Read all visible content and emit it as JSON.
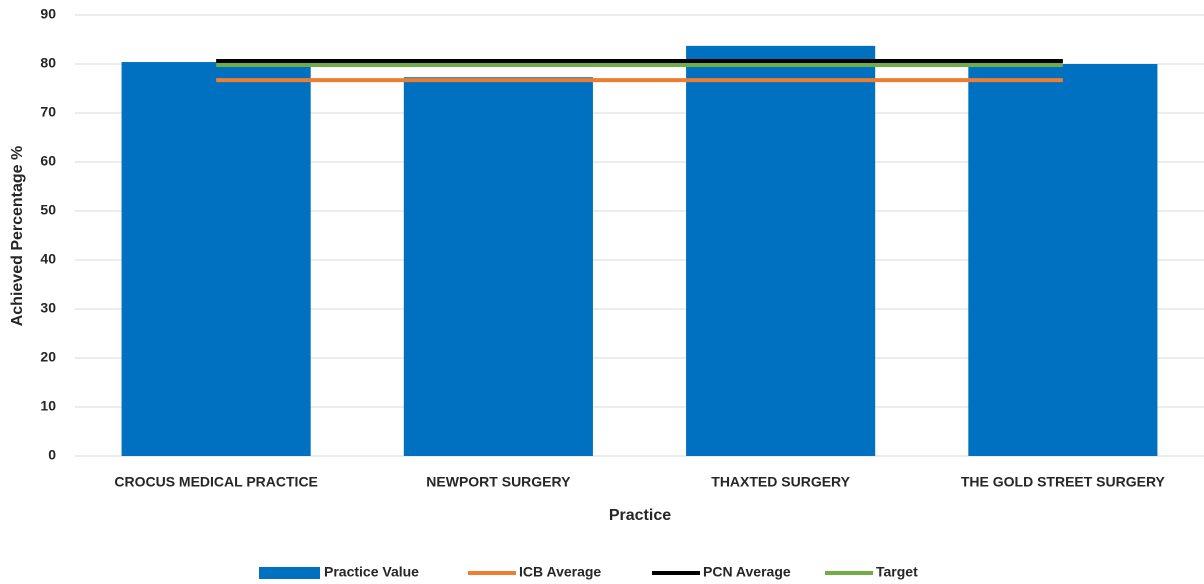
{
  "chart_data": {
    "type": "bar",
    "x_label": "Practice",
    "y_label": "Achieved Percentage %",
    "categories": [
      "CROCUS MEDICAL PRACTICE",
      "NEWPORT SURGERY",
      "THAXTED SURGERY",
      "THE GOLD STREET SURGERY"
    ],
    "series": [
      {
        "name": "Practice Value",
        "type": "bar",
        "color": "#0070c0",
        "values": [
          80.4,
          77.3,
          83.7,
          80.0
        ]
      },
      {
        "name": "ICB Average",
        "type": "line",
        "color": "#ed7d31",
        "values": [
          76.7,
          76.7,
          76.7,
          76.7
        ]
      },
      {
        "name": "PCN Average",
        "type": "line",
        "color": "#000000",
        "values": [
          80.6,
          80.6,
          80.6,
          80.6
        ]
      },
      {
        "name": "Target",
        "type": "line",
        "color": "#70ad47",
        "values": [
          79.8,
          79.8,
          79.8,
          79.8
        ]
      }
    ],
    "ylim": [
      0,
      90
    ],
    "yticks": [
      0,
      10,
      20,
      30,
      40,
      50,
      60,
      70,
      80,
      90
    ],
    "grid": true
  }
}
